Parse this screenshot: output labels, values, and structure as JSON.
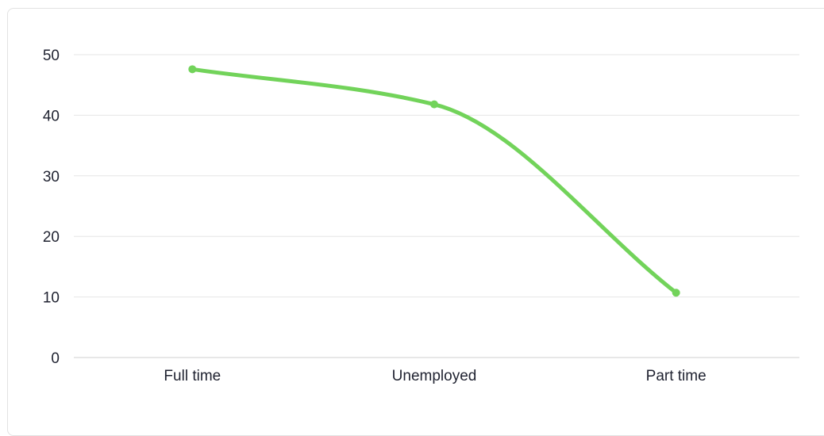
{
  "chart_data": {
    "type": "line",
    "title": "",
    "xlabel": "",
    "ylabel": "",
    "categories": [
      "Full time",
      "Unemployed",
      "Part time"
    ],
    "series": [
      {
        "values": [
          47.6,
          41.8,
          10.7
        ],
        "color": "#72d35a"
      }
    ],
    "ylim": [
      0,
      50
    ],
    "yticks": [
      0,
      10,
      20,
      30,
      40,
      50
    ],
    "grid": true,
    "legend": "none",
    "smooth": true
  }
}
